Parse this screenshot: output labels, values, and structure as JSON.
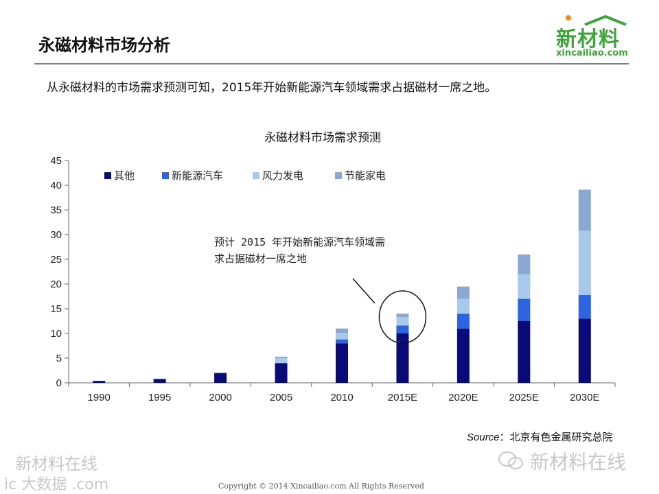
{
  "page": {
    "title": "永磁材料市场分析",
    "subtitle": "从永磁材料的市场需求预测可知，2015年开始新能源汽车领域需求占据磁材一席之地。",
    "source_prefix": "Source",
    "source_text": "：北京有色金属研究总院",
    "copyright": "Copyright © 2014   Xincailiao.com    All Rights Reserved"
  },
  "logo": {
    "main": "新材料",
    "sub": "xincailiao.com",
    "color": "#3ea53a"
  },
  "watermarks": {
    "left_line1": "新材料在线",
    "left_line2": "ic 大数据 .com",
    "right": "新材料在线",
    "right_icon": "wechat-icon"
  },
  "chart_data": {
    "type": "bar",
    "stacked": true,
    "title": "永磁材料市场需求预测",
    "xlabel": "",
    "ylabel": "",
    "ylim": [
      0,
      45
    ],
    "yticks": [
      0,
      5,
      10,
      15,
      20,
      25,
      30,
      35,
      40,
      45
    ],
    "categories": [
      "1990",
      "1995",
      "2000",
      "2005",
      "2010",
      "2015E",
      "2020E",
      "2025E",
      "2030E"
    ],
    "series": [
      {
        "name": "其他",
        "color": "#0a0a78",
        "values": [
          0.4,
          0.8,
          2.0,
          4.0,
          8.0,
          10.0,
          11.0,
          12.5,
          13.0
        ]
      },
      {
        "name": "新能源汽车",
        "color": "#2e64e0",
        "values": [
          0,
          0,
          0,
          0,
          0.8,
          1.6,
          3.0,
          4.5,
          4.8
        ]
      },
      {
        "name": "风力发电",
        "color": "#a8c9ec",
        "values": [
          0,
          0,
          0,
          1.0,
          1.3,
          1.7,
          3.0,
          5.0,
          13.0
        ]
      },
      {
        "name": "节能家电",
        "color": "#8ba8d3",
        "values": [
          0,
          0,
          0,
          0.3,
          0.9,
          0.7,
          2.5,
          4.0,
          8.3
        ]
      }
    ],
    "legend_position": "top-left",
    "grid": false,
    "annotation": {
      "line1": "预计 2015 年开始新能源汽车领域需",
      "line2": "求占据磁材一席之地",
      "target": "2015E"
    }
  }
}
